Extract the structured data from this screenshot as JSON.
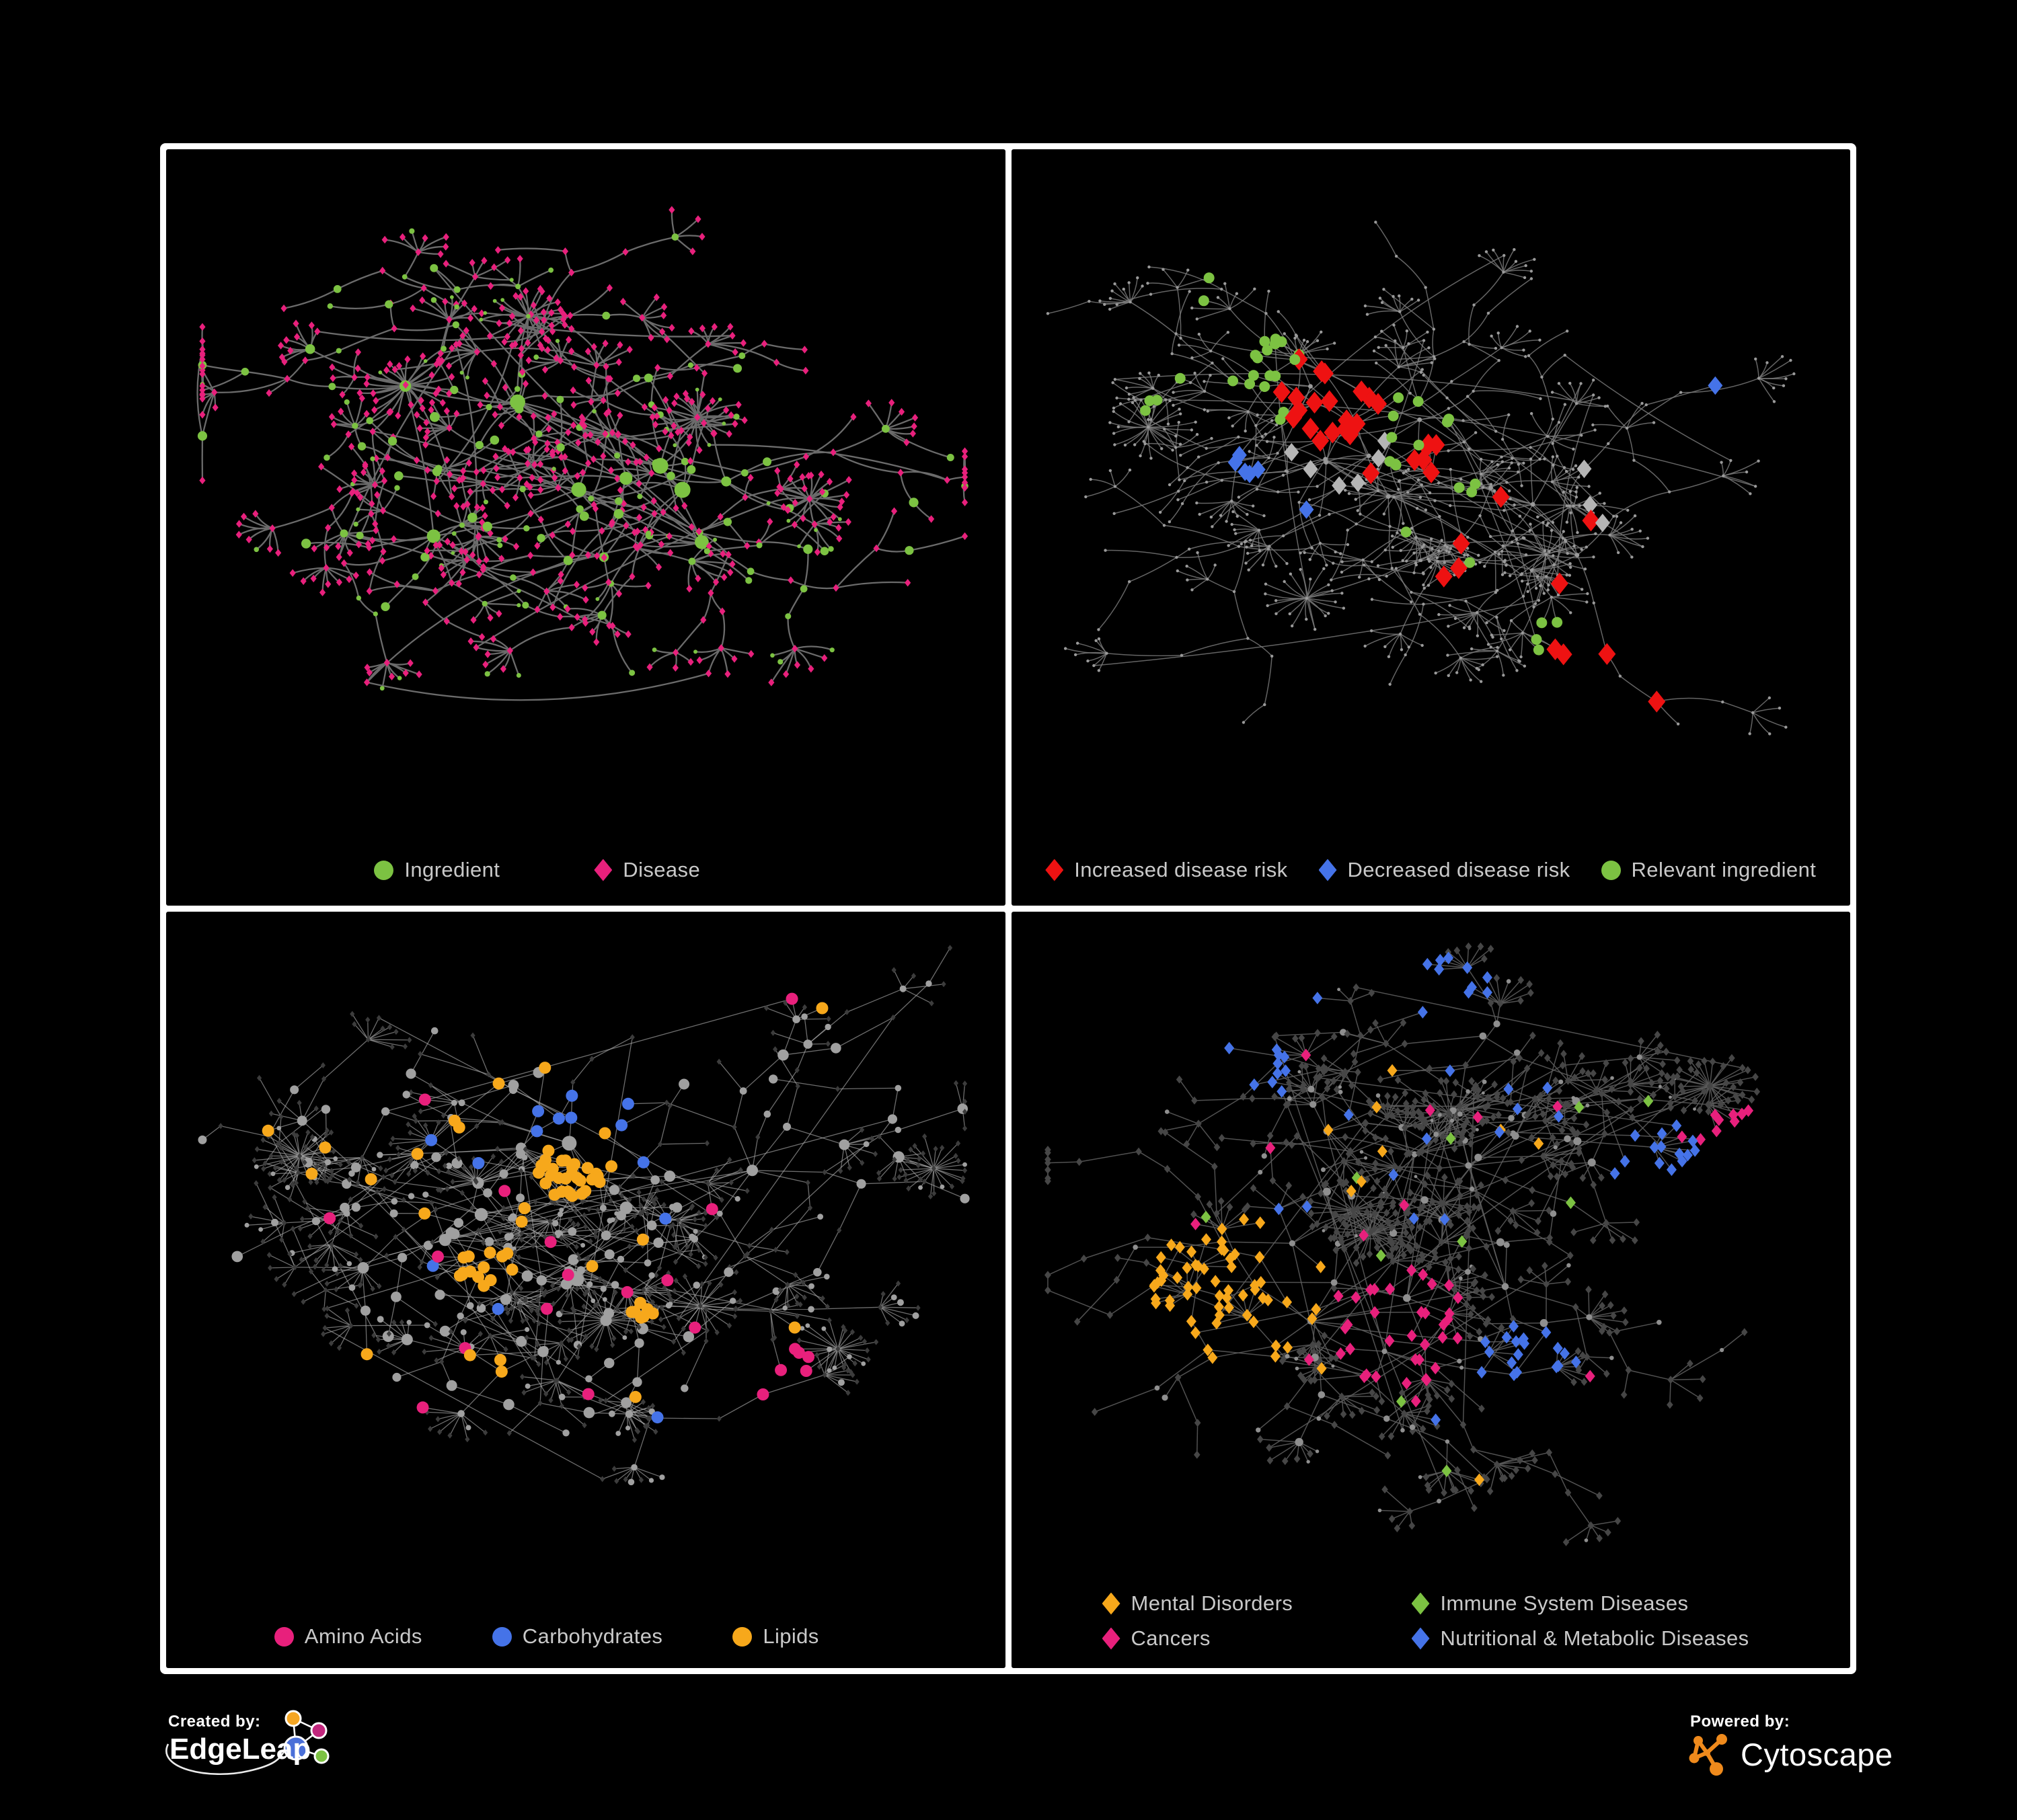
{
  "figure": {
    "background": "#000000",
    "panel_background": "#000000",
    "border_color": "#ffffff"
  },
  "colors": {
    "green": "#7cc242",
    "magenta": "#e8207c",
    "red": "#ee1212",
    "blue": "#4573e8",
    "orange": "#f7a81b",
    "gray_diamond": "#b5b5b5"
  },
  "panels": [
    {
      "name": "ingredient-disease-network",
      "legend_rows": [
        [
          {
            "shape": "circle",
            "color": "#7cc242",
            "label": "Ingredient"
          },
          {
            "shape": "diamond",
            "color": "#e8207c",
            "label": "Disease"
          }
        ]
      ],
      "network": {
        "seed": 101,
        "hubs": 9,
        "hubR": [
          6,
          11
        ],
        "branches": [
          5,
          8
        ],
        "steps": 4,
        "stepLen": 0.052,
        "subProb": 0.42,
        "flowerProb": 0.35,
        "flowerMax": 7,
        "circleProb": 0.32,
        "leafCircleProb": 0.12,
        "sunbursts": 4,
        "sunLeaves": [
          14,
          28
        ],
        "cross": 16,
        "curv": 0.16,
        "edgeColor": "#6b6b6b",
        "edgeW": 2.3,
        "edgeOp": 1,
        "style": "typed",
        "circleColor": "#7cc242",
        "diamondColor": "#e8207c",
        "circleScale": 1.2,
        "diamondS": 4.6,
        "highlights": []
      }
    },
    {
      "name": "disease-risk-network",
      "legend_rows": [
        [
          {
            "shape": "diamond",
            "color": "#ee1212",
            "label": "Increased disease risk"
          },
          {
            "shape": "diamond",
            "color": "#4573e8",
            "label": "Decreased disease risk"
          },
          {
            "shape": "circle",
            "color": "#7cc242",
            "label": "Relevant ingredient"
          }
        ]
      ],
      "network": {
        "seed": 202,
        "hubs": 9,
        "hubR": [
          3,
          4.2
        ],
        "branches": [
          5,
          8
        ],
        "steps": 4,
        "stepLen": 0.055,
        "subProb": 0.42,
        "flowerProb": 0.32,
        "flowerMax": 7,
        "circleProb": 0.3,
        "leafCircleProb": 0.15,
        "sunbursts": 3,
        "sunLeaves": [
          12,
          24
        ],
        "cross": 16,
        "curv": 0.12,
        "edgeColor": "#7d7d7d",
        "edgeW": 1.5,
        "edgeOp": 0.8,
        "style": "uniform",
        "bgColor": "#9a9a9a",
        "circleScale": 1,
        "diamondS": 2.6,
        "highlights": [
          {
            "shape": "d",
            "color": "#ee1212",
            "size": 13,
            "clusters": [
              [
                0.38,
                0.35,
                0.15,
                18
              ],
              [
                0.5,
                0.44,
                0.07,
                6
              ],
              [
                0.7,
                0.74,
                0.06,
                3
              ]
            ],
            "scatter": {
              "n": 9,
              "box": [
                0.3,
                0.9,
                0.2,
                0.85
              ]
            }
          },
          {
            "shape": "d",
            "color": "#b5b5b5",
            "size": 11,
            "clusters": [
              [
                0.38,
                0.42,
                0.2,
                6
              ]
            ],
            "scatter": {
              "n": 3,
              "box": [
                0.25,
                0.75,
                0.3,
                0.78
              ]
            }
          },
          {
            "shape": "d",
            "color": "#4573e8",
            "size": 11,
            "clusters": [
              [
                0.26,
                0.46,
                0.07,
                5
              ],
              [
                0.84,
                0.3,
                0.04,
                2
              ]
            ],
            "scatter": {
              "n": 1,
              "box": [
                0.3,
                0.6,
                0.3,
                0.6
              ]
            }
          },
          {
            "shape": "c",
            "color": "#7cc242",
            "size": 8,
            "clusters": [
              [
                0.3,
                0.32,
                0.13,
                16
              ],
              [
                0.47,
                0.4,
                0.1,
                10
              ],
              [
                0.55,
                0.5,
                0.04,
                3
              ],
              [
                0.67,
                0.72,
                0.05,
                4
              ]
            ],
            "scatter": {
              "n": 9,
              "box": [
                0.1,
                0.85,
                0.12,
                0.82
              ]
            }
          }
        ]
      }
    },
    {
      "name": "nutrient-class-network",
      "legend_rows": [
        [
          {
            "shape": "circle",
            "color": "#e8207c",
            "label": "Amino Acids"
          },
          {
            "shape": "circle",
            "color": "#4573e8",
            "label": "Carbohydrates"
          },
          {
            "shape": "circle",
            "color": "#f7a81b",
            "label": "Lipids"
          }
        ]
      ],
      "network": {
        "seed": 303,
        "hubs": 9,
        "hubR": [
          5,
          8
        ],
        "branches": [
          5,
          8
        ],
        "steps": 4,
        "stepLen": 0.052,
        "subProb": 0.45,
        "flowerProb": 0.35,
        "flowerMax": 7,
        "circleProb": 0.4,
        "leafCircleProb": 0.15,
        "sunbursts": 5,
        "sunLeaves": [
          18,
          36
        ],
        "cross": 20,
        "curv": 0,
        "edgeColor": "#a8a8a8",
        "edgeW": 1.3,
        "edgeOp": 0.65,
        "style": "classed",
        "bgCircleColor": "#a0a0a0",
        "bgDiamondColor": "#3c3c3c",
        "circleScale": 1.4,
        "diamondS": 3.6,
        "highlights": [
          {
            "shape": "c",
            "color": "#f7a81b",
            "size": 9,
            "clusters": [
              [
                0.49,
                0.35,
                0.1,
                30
              ],
              [
                0.38,
                0.52,
                0.08,
                14
              ],
              [
                0.57,
                0.58,
                0.05,
                7
              ]
            ],
            "scatter": {
              "n": 22,
              "box": [
                0.08,
                0.8,
                0.08,
                0.82
              ]
            }
          },
          {
            "shape": "c",
            "color": "#4573e8",
            "size": 9,
            "clusters": [
              [
                0.51,
                0.31,
                0.08,
                9
              ]
            ],
            "scatter": {
              "n": 6,
              "box": [
                0.04,
                0.78,
                0.05,
                0.78
              ]
            }
          },
          {
            "shape": "c",
            "color": "#e8207c",
            "size": 9,
            "clusters": [
              [
                0.73,
                0.68,
                0.09,
                6
              ]
            ],
            "scatter": {
              "n": 15,
              "box": [
                0.04,
                0.82,
                0.08,
                0.86
              ]
            }
          }
        ]
      }
    },
    {
      "name": "disease-class-network",
      "legend_rows": [
        [
          {
            "shape": "diamond",
            "color": "#f7a81b",
            "label": "Mental Disorders"
          },
          {
            "shape": "diamond",
            "color": "#7cc242",
            "label": "Immune System Diseases"
          }
        ],
        [
          {
            "shape": "diamond",
            "color": "#e8207c",
            "label": "Cancers"
          },
          {
            "shape": "diamond",
            "color": "#4573e8",
            "label": "Nutritional & Metabolic Diseases"
          }
        ]
      ],
      "network": {
        "seed": 404,
        "hubs": 9,
        "hubR": [
          4,
          6
        ],
        "branches": [
          5,
          8
        ],
        "steps": 4,
        "stepLen": 0.053,
        "subProb": 0.45,
        "flowerProb": 0.35,
        "flowerMax": 7,
        "circleProb": 0.22,
        "leafCircleProb": 0.1,
        "sunbursts": 5,
        "sunLeaves": [
          16,
          32
        ],
        "cross": 20,
        "curv": 0,
        "edgeColor": "#5f5f5f",
        "edgeW": 1.5,
        "edgeOp": 0.85,
        "style": "classed",
        "bgCircleColor": "#8f8f8f",
        "bgDiamondColor": "#464646",
        "circleScale": 1,
        "diamondS": 4.8,
        "highlights": [
          {
            "shape": "d",
            "color": "#f7a81b",
            "size": 7.5,
            "clusters": [
              [
                0.26,
                0.55,
                0.16,
                60
              ]
            ],
            "scatter": {
              "n": 10,
              "box": [
                0.1,
                0.7,
                0.1,
                0.85
              ]
            }
          },
          {
            "shape": "d",
            "color": "#e8207c",
            "size": 7.5,
            "clusters": [
              [
                0.46,
                0.6,
                0.11,
                35
              ],
              [
                0.88,
                0.32,
                0.06,
                8
              ]
            ],
            "scatter": {
              "n": 12,
              "box": [
                0.15,
                0.85,
                0.1,
                0.9
              ]
            }
          },
          {
            "shape": "d",
            "color": "#4573e8",
            "size": 7.5,
            "clusters": [
              [
                0.62,
                0.66,
                0.08,
                18
              ],
              [
                0.52,
                0.1,
                0.1,
                10
              ],
              [
                0.78,
                0.36,
                0.13,
                14
              ],
              [
                0.28,
                0.2,
                0.14,
                9
              ]
            ],
            "scatter": {
              "n": 16,
              "box": [
                0.08,
                0.92,
                0.05,
                0.9
              ]
            }
          },
          {
            "shape": "d",
            "color": "#7cc242",
            "size": 7.5,
            "clusters": [],
            "scatter": {
              "n": 10,
              "box": [
                0.2,
                0.8,
                0.2,
                0.9
              ]
            }
          }
        ]
      }
    }
  ],
  "branding": {
    "left_kicker": "Created by:",
    "left_name": "EdgeLeap",
    "right_kicker": "Powered by:",
    "right_name": "Cytoscape",
    "cytoscape_orange": "#ef8a1c",
    "edgeleap_node_colors": [
      "#f5a623",
      "#c2267d",
      "#4a6fd8",
      "#7cc242"
    ]
  }
}
